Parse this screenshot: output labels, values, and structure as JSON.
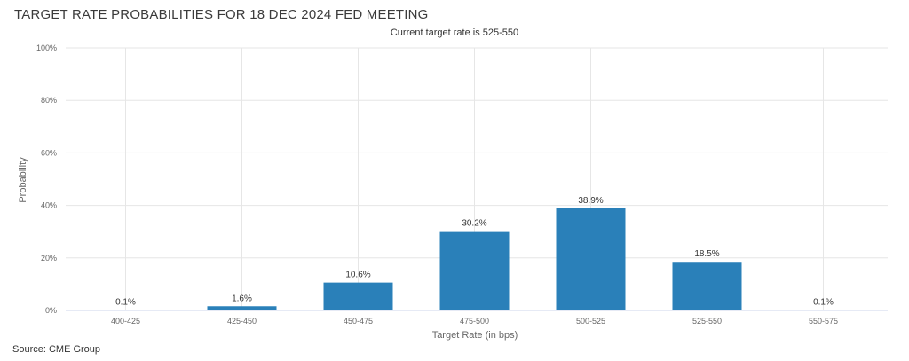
{
  "chart_data": {
    "type": "bar",
    "title": "TARGET RATE PROBABILITIES FOR 18 DEC 2024 FED MEETING",
    "subtitle": "Current target rate is 525-550",
    "xlabel": "Target Rate (in bps)",
    "ylabel": "Probability",
    "categories": [
      "400-425",
      "425-450",
      "450-475",
      "475-500",
      "500-525",
      "525-550",
      "550-575"
    ],
    "values": [
      0.1,
      1.6,
      10.6,
      30.2,
      38.9,
      18.5,
      0.1
    ],
    "data_labels": [
      "0.1%",
      "1.6%",
      "10.6%",
      "30.2%",
      "38.9%",
      "18.5%",
      "0.1%"
    ],
    "ylim": [
      0,
      100
    ],
    "yticks": [
      0,
      20,
      40,
      60,
      80,
      100
    ],
    "ytick_labels": [
      "0%",
      "20%",
      "40%",
      "60%",
      "80%",
      "100%"
    ],
    "bar_color": "#2a80b9",
    "grid": true,
    "legend": false
  },
  "source": "Source: CME Group"
}
